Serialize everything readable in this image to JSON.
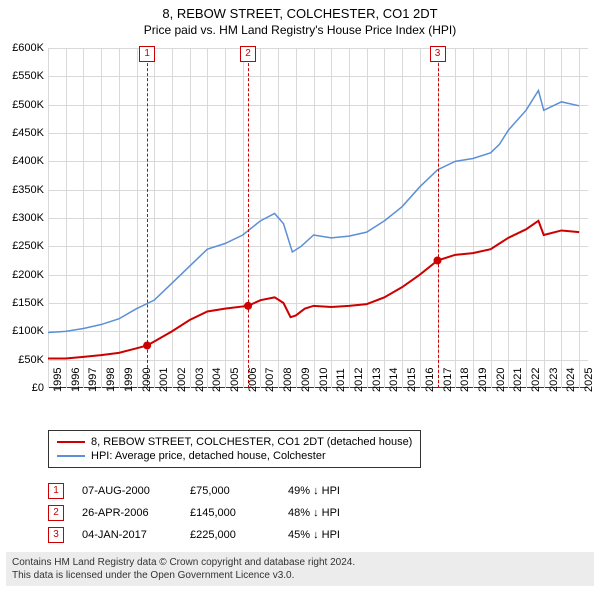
{
  "title_line1": "8, REBOW STREET, COLCHESTER, CO1 2DT",
  "title_line2": "Price paid vs. HM Land Registry's House Price Index (HPI)",
  "chart": {
    "type": "line",
    "background_color": "#ffffff",
    "grid_color": "#d9d9d9",
    "axis_color": "#333333",
    "xlim": [
      1995,
      2025.5
    ],
    "ylim": [
      0,
      600000
    ],
    "ytick_step": 50000,
    "yticks": [
      "£0",
      "£50K",
      "£100K",
      "£150K",
      "£200K",
      "£250K",
      "£300K",
      "£350K",
      "£400K",
      "£450K",
      "£500K",
      "£550K",
      "£600K"
    ],
    "xticks": [
      "1995",
      "1996",
      "1997",
      "1998",
      "1999",
      "2000",
      "2001",
      "2002",
      "2003",
      "2004",
      "2005",
      "2006",
      "2007",
      "2008",
      "2009",
      "2010",
      "2011",
      "2012",
      "2013",
      "2014",
      "2015",
      "2016",
      "2017",
      "2018",
      "2019",
      "2020",
      "2021",
      "2022",
      "2023",
      "2024",
      "2025"
    ],
    "tick_fontsize": 11,
    "series": [
      {
        "name": "property",
        "label": "8, REBOW STREET, COLCHESTER, CO1 2DT (detached house)",
        "color": "#cc0000",
        "line_width": 2,
        "data": [
          [
            1995,
            52000
          ],
          [
            1996,
            52000
          ],
          [
            1997,
            55000
          ],
          [
            1998,
            58000
          ],
          [
            1999,
            62000
          ],
          [
            2000,
            70000
          ],
          [
            2000.6,
            75000
          ],
          [
            2001,
            82000
          ],
          [
            2002,
            100000
          ],
          [
            2003,
            120000
          ],
          [
            2004,
            135000
          ],
          [
            2005,
            140000
          ],
          [
            2006.3,
            145000
          ],
          [
            2007,
            155000
          ],
          [
            2007.8,
            160000
          ],
          [
            2008.3,
            150000
          ],
          [
            2008.7,
            125000
          ],
          [
            2009,
            128000
          ],
          [
            2009.5,
            140000
          ],
          [
            2010,
            145000
          ],
          [
            2011,
            143000
          ],
          [
            2012,
            145000
          ],
          [
            2013,
            148000
          ],
          [
            2014,
            160000
          ],
          [
            2015,
            178000
          ],
          [
            2016,
            200000
          ],
          [
            2017,
            225000
          ],
          [
            2018,
            235000
          ],
          [
            2019,
            238000
          ],
          [
            2020,
            245000
          ],
          [
            2020.5,
            255000
          ],
          [
            2021,
            265000
          ],
          [
            2022,
            280000
          ],
          [
            2022.7,
            295000
          ],
          [
            2023,
            270000
          ],
          [
            2024,
            278000
          ],
          [
            2025,
            275000
          ]
        ]
      },
      {
        "name": "hpi",
        "label": "HPI: Average price, detached house, Colchester",
        "color": "#5b8fd6",
        "line_width": 1.5,
        "data": [
          [
            1995,
            98000
          ],
          [
            1996,
            100000
          ],
          [
            1997,
            105000
          ],
          [
            1998,
            112000
          ],
          [
            1999,
            122000
          ],
          [
            2000,
            140000
          ],
          [
            2001,
            155000
          ],
          [
            2002,
            185000
          ],
          [
            2003,
            215000
          ],
          [
            2004,
            245000
          ],
          [
            2005,
            255000
          ],
          [
            2006,
            270000
          ],
          [
            2007,
            295000
          ],
          [
            2007.8,
            308000
          ],
          [
            2008.3,
            290000
          ],
          [
            2008.8,
            240000
          ],
          [
            2009.3,
            250000
          ],
          [
            2010,
            270000
          ],
          [
            2011,
            265000
          ],
          [
            2012,
            268000
          ],
          [
            2013,
            275000
          ],
          [
            2014,
            295000
          ],
          [
            2015,
            320000
          ],
          [
            2016,
            355000
          ],
          [
            2017,
            385000
          ],
          [
            2018,
            400000
          ],
          [
            2019,
            405000
          ],
          [
            2020,
            415000
          ],
          [
            2020.5,
            430000
          ],
          [
            2021,
            455000
          ],
          [
            2022,
            490000
          ],
          [
            2022.7,
            525000
          ],
          [
            2023,
            490000
          ],
          [
            2024,
            505000
          ],
          [
            2025,
            498000
          ]
        ]
      }
    ],
    "markers": [
      {
        "n": "1",
        "x": 2000.6,
        "date": "07-AUG-2000",
        "price": "£75,000",
        "delta": "49% ↓ HPI"
      },
      {
        "n": "2",
        "x": 2006.3,
        "date": "26-APR-2006",
        "price": "£145,000",
        "delta": "48% ↓ HPI"
      },
      {
        "n": "3",
        "x": 2017.0,
        "date": "04-JAN-2017",
        "price": "£225,000",
        "delta": "45% ↓ HPI"
      }
    ],
    "marker_line_color": "#cc0000",
    "marker_box_border": "#cc0000",
    "dot_color": "#cc0000",
    "dot_radius": 4
  },
  "legend_border_color": "#333333",
  "footer_line1": "Contains HM Land Registry data © Crown copyright and database right 2024.",
  "footer_line2": "This data is licensed under the Open Government Licence v3.0.",
  "footer_bg": "#ececec"
}
